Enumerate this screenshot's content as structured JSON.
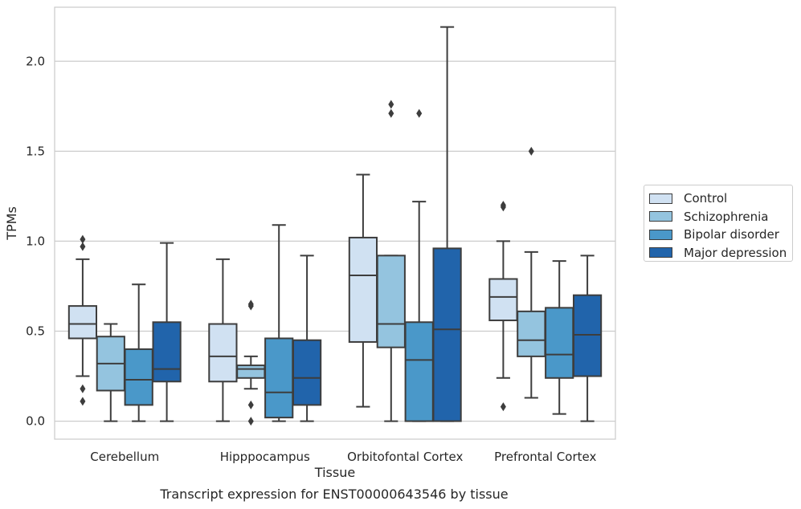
{
  "chart_data": {
    "type": "boxplot",
    "title": "",
    "caption": "Transcript expression for ENST00000643546 by tissue",
    "xlabel": "Tissue",
    "ylabel": "TPMs",
    "ylim": [
      -0.1,
      2.3
    ],
    "yticks": [
      0.0,
      0.5,
      1.0,
      1.5,
      2.0
    ],
    "ytick_labels": [
      "0.0",
      "0.5",
      "1.0",
      "1.5",
      "2.0"
    ],
    "grid": "horizontal",
    "legend_position": "right",
    "categories": [
      "Cerebellum",
      "Hipppocampus",
      "Orbitofontal Cortex",
      "Prefrontal Cortex"
    ],
    "series": [
      {
        "name": "Control",
        "color": "#d0e1f2",
        "boxes": [
          {
            "whislo": 0.25,
            "q1": 0.46,
            "med": 0.54,
            "q3": 0.64,
            "whishi": 0.9,
            "fliers": [
              1.01,
              0.97,
              0.18,
              0.11
            ]
          },
          {
            "whislo": 0.0,
            "q1": 0.22,
            "med": 0.36,
            "q3": 0.54,
            "whishi": 0.9,
            "fliers": []
          },
          {
            "whislo": 0.08,
            "q1": 0.44,
            "med": 0.81,
            "q3": 1.02,
            "whishi": 1.37,
            "fliers": []
          },
          {
            "whislo": 0.24,
            "q1": 0.56,
            "med": 0.69,
            "q3": 0.79,
            "whishi": 1.0,
            "fliers": [
              1.2,
              1.19,
              0.08
            ]
          }
        ]
      },
      {
        "name": "Schizophrenia",
        "color": "#94c4df",
        "boxes": [
          {
            "whislo": 0.0,
            "q1": 0.17,
            "med": 0.32,
            "q3": 0.47,
            "whishi": 0.54,
            "fliers": []
          },
          {
            "whislo": 0.18,
            "q1": 0.24,
            "med": 0.29,
            "q3": 0.31,
            "whishi": 0.36,
            "fliers": [
              0.65,
              0.64,
              0.09,
              0.0
            ]
          },
          {
            "whislo": 0.0,
            "q1": 0.41,
            "med": 0.54,
            "q3": 0.92,
            "whishi": 0.92,
            "fliers": [
              1.76,
              1.71
            ]
          },
          {
            "whislo": 0.13,
            "q1": 0.36,
            "med": 0.45,
            "q3": 0.61,
            "whishi": 0.94,
            "fliers": [
              1.5
            ]
          }
        ]
      },
      {
        "name": "Bipolar disorder",
        "color": "#4a98c9",
        "boxes": [
          {
            "whislo": 0.0,
            "q1": 0.09,
            "med": 0.23,
            "q3": 0.4,
            "whishi": 0.76,
            "fliers": []
          },
          {
            "whislo": 0.0,
            "q1": 0.02,
            "med": 0.16,
            "q3": 0.46,
            "whishi": 1.09,
            "fliers": []
          },
          {
            "whislo": 0.0,
            "q1": 0.0,
            "med": 0.34,
            "q3": 0.55,
            "whishi": 1.22,
            "fliers": [
              1.71
            ]
          },
          {
            "whislo": 0.04,
            "q1": 0.24,
            "med": 0.37,
            "q3": 0.63,
            "whishi": 0.89,
            "fliers": []
          }
        ]
      },
      {
        "name": "Major depression",
        "color": "#2164ab",
        "boxes": [
          {
            "whislo": 0.0,
            "q1": 0.22,
            "med": 0.29,
            "q3": 0.55,
            "whishi": 0.99,
            "fliers": []
          },
          {
            "whislo": 0.0,
            "q1": 0.09,
            "med": 0.24,
            "q3": 0.45,
            "whishi": 0.92,
            "fliers": []
          },
          {
            "whislo": 0.0,
            "q1": 0.0,
            "med": 0.51,
            "q3": 0.96,
            "whishi": 2.19,
            "fliers": []
          },
          {
            "whislo": 0.0,
            "q1": 0.25,
            "med": 0.48,
            "q3": 0.7,
            "whishi": 0.92,
            "fliers": []
          }
        ]
      }
    ]
  }
}
